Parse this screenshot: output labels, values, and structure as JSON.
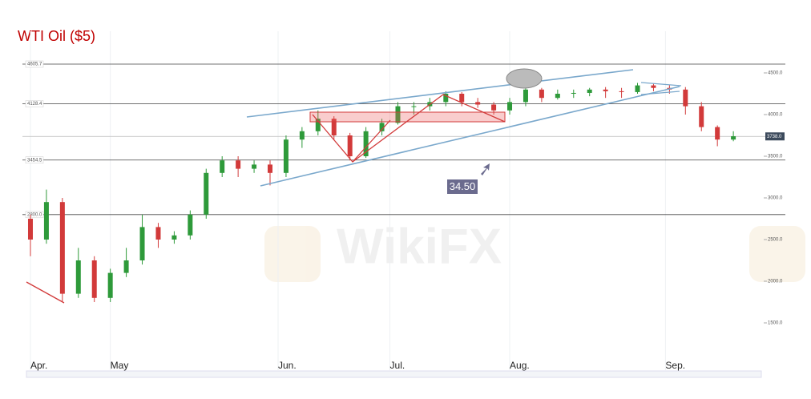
{
  "chart_data": {
    "type": "candlestick",
    "title": "WTI Oil ($5)",
    "xlim": [
      -1,
      183
    ],
    "ylim": [
      1000,
      5000
    ],
    "xticks": [
      {
        "value": 0,
        "label": "Apr."
      },
      {
        "value": 20,
        "label": "May"
      },
      {
        "value": 62,
        "label": "Jun."
      },
      {
        "value": 90,
        "label": "Jul."
      },
      {
        "value": 120,
        "label": "Aug."
      },
      {
        "value": 159,
        "label": "Sep."
      }
    ],
    "yticks": [
      {
        "value": 1500,
        "label": "1500.0"
      },
      {
        "value": 2000,
        "label": "2000.0"
      },
      {
        "value": 2500,
        "label": "2500.0"
      },
      {
        "value": 3000,
        "label": "3000.0"
      },
      {
        "value": 3500,
        "label": "3500.0"
      },
      {
        "value": 4000,
        "label": "4000.0"
      },
      {
        "value": 4500,
        "label": "4500.0"
      }
    ],
    "levels": [
      4605.7,
      4128.4,
      3454.5,
      {
        "value": 2800,
        "label": "2800.0"
      }
    ],
    "last_price": {
      "value": 3738,
      "label": "3738.0"
    },
    "annotation": "34.50",
    "watermark": "WikiFX",
    "up_color": "#2e9a3a",
    "down_color": "#d23a3a",
    "x": [
      0,
      4,
      8,
      12,
      16,
      20,
      24,
      28,
      32,
      36,
      40,
      44,
      48,
      52,
      56,
      60,
      64,
      68,
      72,
      76,
      80,
      84,
      88,
      92,
      96,
      100,
      104,
      108,
      112,
      116,
      120,
      124,
      128,
      132,
      136,
      140,
      144,
      148,
      152,
      156,
      160,
      164,
      168,
      172,
      176
    ],
    "open": [
      2750,
      2500,
      2950,
      1850,
      2250,
      1800,
      2100,
      2250,
      2650,
      2500,
      2550,
      2800,
      3300,
      3450,
      3350,
      3400,
      3300,
      3700,
      3800,
      3950,
      3750,
      3500,
      3800,
      3900,
      4100,
      4100,
      4150,
      4250,
      4150,
      4120,
      4050,
      4150,
      4300,
      4200,
      4250,
      4260,
      4300,
      4280,
      4270,
      4350,
      4320,
      4300,
      4100,
      3850,
      3700
    ],
    "high": [
      2800,
      3100,
      3000,
      2400,
      2300,
      2150,
      2400,
      2800,
      2700,
      2600,
      2850,
      3350,
      3500,
      3500,
      3450,
      3450,
      3750,
      3850,
      4050,
      3980,
      3780,
      3850,
      3950,
      4150,
      4150,
      4200,
      4280,
      4270,
      4200,
      4150,
      4200,
      4400,
      4320,
      4300,
      4300,
      4320,
      4330,
      4320,
      4380,
      4370,
      4360,
      4330,
      4150,
      3870,
      3800
    ],
    "low": [
      2300,
      2450,
      1750,
      1800,
      1750,
      1750,
      2050,
      2200,
      2400,
      2450,
      2500,
      2750,
      3250,
      3250,
      3300,
      3150,
      3250,
      3600,
      3750,
      3700,
      3450,
      3480,
      3750,
      3880,
      4000,
      4050,
      4100,
      4100,
      4080,
      4000,
      4000,
      4100,
      4150,
      4180,
      4200,
      4220,
      4200,
      4200,
      4250,
      4280,
      4250,
      4000,
      3800,
      3620,
      3680
    ],
    "close": [
      2500,
      2950,
      1850,
      2250,
      1800,
      2100,
      2250,
      2650,
      2500,
      2550,
      2800,
      3300,
      3450,
      3350,
      3400,
      3300,
      3700,
      3800,
      3950,
      3750,
      3500,
      3800,
      3900,
      4100,
      4100,
      4150,
      4250,
      4150,
      4120,
      4050,
      4150,
      4300,
      4200,
      4250,
      4260,
      4300,
      4280,
      4270,
      4350,
      4320,
      4300,
      4100,
      3850,
      3700,
      3740
    ]
  }
}
